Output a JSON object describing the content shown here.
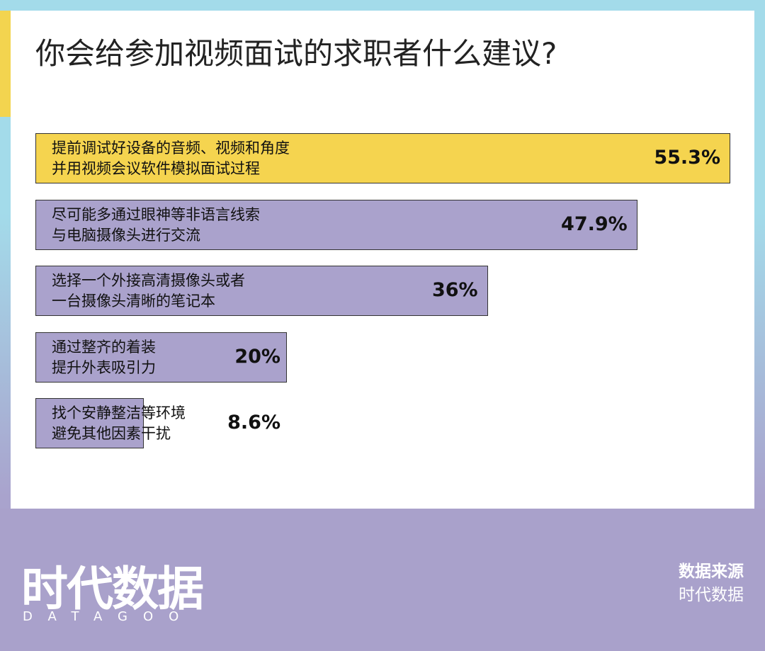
{
  "chart_data": {
    "type": "hbar",
    "title": "你会给参加视频面试的求职者什么建议?",
    "categories": [
      "提前调试好设备的音频、视频和角度\n并用视频会议软件模拟面试过程",
      "尽可能多通过眼神等非语言线索\n与电脑摄像头进行交流",
      "选择一个外接高清摄像头或者\n一台摄像头清晰的笔记本",
      "通过整齐的着装\n提升外表吸引力",
      "找个安静整洁等环境\n避免其他因素干扰"
    ],
    "values": [
      55.3,
      47.9,
      36,
      20,
      8.6
    ],
    "value_labels": [
      "55.3%",
      "47.9%",
      "36%",
      "20%",
      "8.6%"
    ],
    "colors": [
      "#f5d44f",
      "#aaa2cc",
      "#aaa2cc",
      "#aaa2cc",
      "#aaa2cc"
    ]
  },
  "footer": {
    "logo": "时代数据",
    "logo_sub": "DATAGOO",
    "source_label": "数据来源",
    "source": "时代数据"
  }
}
